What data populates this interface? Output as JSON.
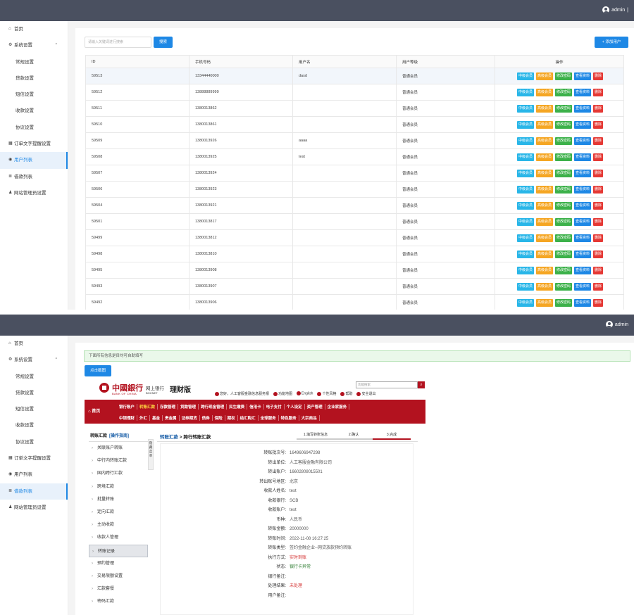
{
  "header": {
    "username": "admin"
  },
  "sidebar": {
    "items": [
      {
        "label": "首页",
        "icon": "home-icon",
        "glyph": "⌂"
      },
      {
        "label": "系统设置",
        "icon": "gear-icon",
        "glyph": "⚙",
        "caret": "^"
      },
      {
        "label": "常规设置",
        "sub": true
      },
      {
        "label": "贷款设置",
        "sub": true
      },
      {
        "label": "短信设置",
        "sub": true
      },
      {
        "label": "收款设置",
        "sub": true
      },
      {
        "label": "协议设置",
        "sub": true
      },
      {
        "label": "订单文字提醒设置",
        "icon": "document-icon",
        "glyph": "▦"
      },
      {
        "label": "用户列表",
        "icon": "eye-icon",
        "glyph": "◉"
      },
      {
        "label": "借款列表",
        "icon": "list-icon",
        "glyph": "≣"
      },
      {
        "label": "网站管理员设置",
        "icon": "user-icon",
        "glyph": "♟"
      }
    ]
  },
  "users": {
    "search_placeholder": "请输入关键词进行搜索",
    "search_button": "搜索",
    "add_button": "+ 添加用户",
    "columns": [
      "ID",
      "手机号码",
      "用户名",
      "用户等级",
      "操作"
    ],
    "actions": [
      {
        "label": "中级会员",
        "color": "#29b6e8"
      },
      {
        "label": "高级会员",
        "color": "#f5a623"
      },
      {
        "label": "修改密码",
        "color": "#3cb14a"
      },
      {
        "label": "查看资料",
        "color": "#1e88e5"
      },
      {
        "label": "删除",
        "color": "#e53935"
      }
    ],
    "rows": [
      {
        "id": "59513",
        "phone": "13344440000",
        "name": "dasd",
        "level": "普通会员"
      },
      {
        "id": "59512",
        "phone": "13888889999",
        "name": "",
        "level": "普通会员"
      },
      {
        "id": "59511",
        "phone": "1380013862",
        "name": "",
        "level": "普通会员"
      },
      {
        "id": "59510",
        "phone": "1380013861",
        "name": "",
        "level": "普通会员"
      },
      {
        "id": "59509",
        "phone": "1380013926",
        "name": "aaaa",
        "level": "普通会员"
      },
      {
        "id": "59508",
        "phone": "1380013925",
        "name": "test",
        "level": "普通会员"
      },
      {
        "id": "59507",
        "phone": "1380013924",
        "name": "",
        "level": "普通会员"
      },
      {
        "id": "59506",
        "phone": "1380013923",
        "name": "",
        "level": "普通会员"
      },
      {
        "id": "59504",
        "phone": "1380013921",
        "name": "",
        "level": "普通会员"
      },
      {
        "id": "59501",
        "phone": "1380013817",
        "name": "",
        "level": "普通会员"
      },
      {
        "id": "59499",
        "phone": "1380013812",
        "name": "",
        "level": "普通会员"
      },
      {
        "id": "59498",
        "phone": "1380013810",
        "name": "",
        "level": "普通会员"
      },
      {
        "id": "59495",
        "phone": "1380013908",
        "name": "",
        "level": "普通会员"
      },
      {
        "id": "59493",
        "phone": "1380013907",
        "name": "",
        "level": "普通会员"
      },
      {
        "id": "59492",
        "phone": "1380013906",
        "name": "",
        "level": "普通会员"
      }
    ]
  },
  "loan": {
    "notice": "下面所有信息是目均可自助填写",
    "screenshot_button": "点击截图"
  },
  "boc": {
    "logo_cn": "中國銀行",
    "logo_en": "BANK OF CHINA",
    "online": "网上银行",
    "bocnet": "BOCNET",
    "product": "理财版",
    "search_placeholder": "功能搜索",
    "top_links": [
      "您好，人工客服金融信息服务报",
      "功能地图",
      "English",
      "个性风格",
      "帮助",
      "安全退出"
    ],
    "home": "首页",
    "nav1": [
      "银行账户",
      "转账汇款",
      "存款管理",
      "贷款管理",
      "跨行现金管理",
      "民生缴费",
      "信用卡",
      "电子支付",
      "个人设定",
      "资产管理",
      "企业家服务"
    ],
    "nav2": [
      "中银理财",
      "外汇",
      "基金",
      "贵金属",
      "证券期货",
      "债券",
      "保险",
      "期权",
      "结汇购汇",
      "全球服务",
      "特色服务",
      "大宗商品"
    ],
    "left_title": "转账汇款",
    "left_guide": "[操作指南]",
    "left_items": [
      "关联账户转账",
      "中行内转账汇款",
      "国内跨行汇款",
      "跨境汇款",
      "批量转账",
      "定向汇款",
      "主动收款",
      "收款人管理",
      "转账记录",
      "预约管理",
      "交易限额设置",
      "汇款套餐",
      "密码汇款"
    ],
    "toggle": "隐藏菜单",
    "crumb_a": "转账汇款",
    "crumb_b": "跨行转账汇款",
    "steps": [
      "1.填写转账信息",
      "2.确认",
      "3.完成"
    ],
    "details": [
      {
        "k": "转账批次号:",
        "v": "1649606947298"
      },
      {
        "k": "转出单位:",
        "v": "人工客服金融有限公司"
      },
      {
        "k": "转出账户:",
        "v": "16602808015501"
      },
      {
        "k": "转出账号地区:",
        "v": "北京"
      },
      {
        "k": "收款人姓名:",
        "v": "test"
      },
      {
        "k": "收款银行:",
        "v": "SCB"
      },
      {
        "k": "收款账户:",
        "v": "test"
      },
      {
        "k": "币种:",
        "v": "人民币"
      },
      {
        "k": "转账金额:",
        "v": "20000000"
      },
      {
        "k": "转账时间:",
        "v": "2022-11-08 16:27:25"
      },
      {
        "k": "转账类型:",
        "v": "签约金融企业--网贷放款预约转账"
      },
      {
        "k": "执行方式:",
        "v": "实时到账",
        "c": "red"
      },
      {
        "k": "状态:",
        "v": "银行卡异常",
        "c": "grn"
      },
      {
        "k": "银行备注:",
        "v": ""
      },
      {
        "k": "处理结果:",
        "v": "未处理",
        "c": "red"
      },
      {
        "k": "用户备注:",
        "v": ""
      }
    ]
  }
}
